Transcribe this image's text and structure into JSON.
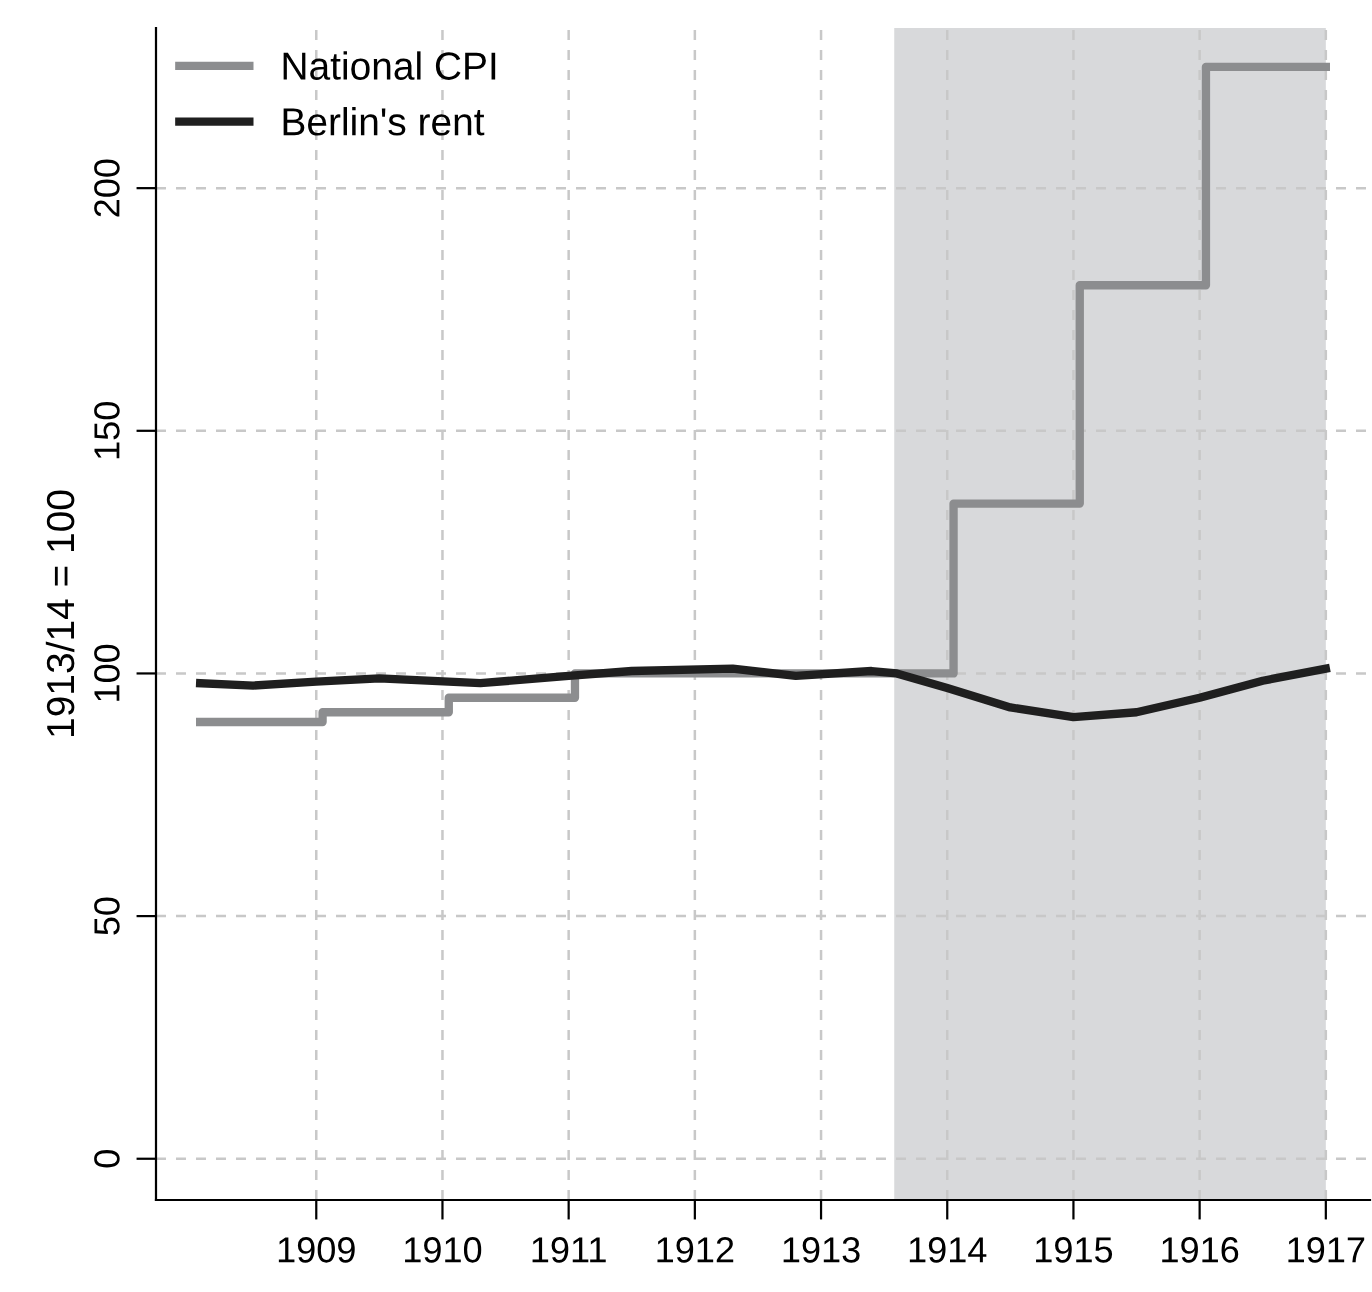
{
  "chart_data": {
    "type": "step",
    "ylabel": "1913/14 = 100",
    "xlim": [
      1907.73,
      1917.35
    ],
    "ylim": [
      -8.5,
      233
    ],
    "xticks": [
      1909,
      1910,
      1911,
      1912,
      1913,
      1914,
      1915,
      1916,
      1917
    ],
    "yticks": [
      0,
      50,
      100,
      150,
      200
    ],
    "grid": true,
    "legend": "top left",
    "marker": "none",
    "line_style": "solid",
    "bands": [
      {
        "axis": "x",
        "from": 1913.58,
        "to": 1917,
        "label": null,
        "color": "#d8d9db"
      }
    ],
    "series": [
      {
        "name": "National CPI",
        "color": "#8c8d8f",
        "x": [
          1908.08,
          1909.05,
          1910.05,
          1911.05,
          1914.05,
          1915.05,
          1916.05,
          1917
        ],
        "values": [
          90,
          92,
          95,
          100,
          135,
          180,
          225,
          225
        ]
      },
      {
        "name": "Berlin's rent",
        "type": "line",
        "color": "#1f1f1f",
        "x": [
          1908.08,
          1908.5,
          1909.0,
          1909.5,
          1910.3,
          1911.0,
          1911.5,
          1912.3,
          1912.8,
          1913.4,
          1913.6,
          1914.0,
          1914.5,
          1915.0,
          1915.5,
          1916.0,
          1916.5,
          1917.0
        ],
        "values": [
          98,
          97.5,
          98.3,
          99,
          98,
          99.5,
          100.5,
          101,
          99.5,
          100.5,
          100,
          97,
          93,
          91,
          92,
          95,
          98.5,
          101
        ]
      }
    ]
  }
}
